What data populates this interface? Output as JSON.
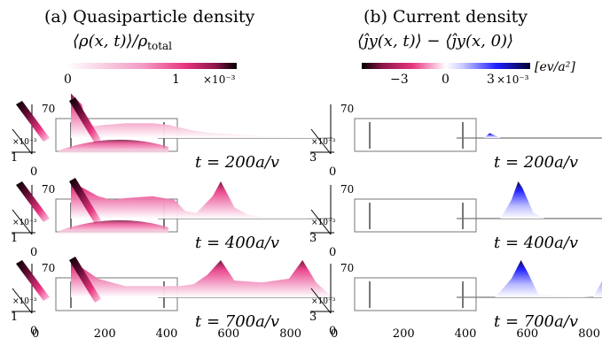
{
  "panel_a": {
    "title": "(a) Quasiparticle density",
    "formula": "⟨ρ(x, t)⟩/ρ",
    "formula_sub": "total",
    "colorbar_ticks": [
      "0",
      "1"
    ],
    "colorbar_exponent": "×10⁻³",
    "colorbar_colors": [
      "#ffffff",
      "#f06aa6",
      "#c8246b",
      "#000000"
    ]
  },
  "panel_b": {
    "title": "(b) Current density",
    "formula": "⟨ĵy(x, t)⟩ − ⟨ĵy(x, 0)⟩",
    "colorbar_ticks": [
      "−3",
      "0",
      "3"
    ],
    "colorbar_exponent": "×10⁻³",
    "colorbar_unit": "[ev/a²]",
    "colorbar_colors": [
      "#000000",
      "#8a1548",
      "#f3a3c8",
      "#ffffff",
      "#b8b8ff",
      "#1010ff",
      "#000050"
    ]
  },
  "time_labels": [
    "t = 200a/v",
    "t = 400a/v",
    "t = 700a/v"
  ],
  "axis": {
    "x_ticks": [
      "0",
      "200",
      "400",
      "600",
      "800"
    ],
    "y_tick_top": "70",
    "y_tick_bottom": "0",
    "z_exponent": "×10⁻³",
    "z_tick_a": "1",
    "z_tick_b": "3"
  },
  "chart_data": [
    {
      "type": "area",
      "title": "(a) Quasiparticle density",
      "xlabel": "",
      "ylabel": "",
      "xlim": [
        0,
        960
      ],
      "ylim": [
        0,
        70
      ],
      "series": [
        {
          "name": "t = 200a/v",
          "x": [
            0,
            40,
            60,
            120,
            200,
            300,
            360,
            390,
            420,
            450,
            500,
            600,
            700,
            800,
            960
          ],
          "values": [
            1.2,
            0.9,
            0.3,
            0.35,
            0.4,
            0.4,
            0.35,
            0.3,
            0.25,
            0.2,
            0.15,
            0.1,
            0.05,
            0.03,
            0.0
          ]
        },
        {
          "name": "t = 400a/v",
          "x": [
            0,
            100,
            150,
            200,
            300,
            380,
            420,
            460,
            520,
            550,
            600,
            650,
            700,
            800,
            960
          ],
          "values": [
            1.0,
            0.6,
            0.5,
            0.55,
            0.6,
            0.5,
            0.2,
            0.15,
            0.6,
            1.0,
            0.3,
            0.1,
            0.05,
            0.02,
            0.0
          ]
        },
        {
          "name": "t = 700a/v",
          "x": [
            0,
            100,
            200,
            300,
            400,
            450,
            500,
            550,
            600,
            700,
            800,
            850,
            900,
            960
          ],
          "values": [
            1.0,
            0.5,
            0.3,
            0.3,
            0.3,
            0.35,
            0.6,
            1.0,
            0.45,
            0.4,
            0.5,
            1.0,
            0.4,
            0.0
          ]
        }
      ]
    },
    {
      "type": "area",
      "title": "(b) Current density",
      "xlabel": "",
      "ylabel": "",
      "xlim": [
        0,
        960
      ],
      "ylim": [
        0,
        70
      ],
      "series": [
        {
          "name": "t = 200a/v",
          "x": [
            420,
            440,
            460,
            480
          ],
          "values": [
            0.0,
            0.4,
            0.2,
            0.0
          ]
        },
        {
          "name": "t = 400a/v",
          "x": [
            480,
            520,
            545,
            560,
            600,
            640
          ],
          "values": [
            0.0,
            1.5,
            3.0,
            2.5,
            0.5,
            0.0
          ]
        },
        {
          "name": "t = 700a/v",
          "x": [
            460,
            520,
            555,
            580,
            620,
            820,
            870,
            900,
            940
          ],
          "values": [
            0.0,
            1.5,
            3.0,
            2.0,
            0.2,
            0.0,
            2.0,
            3.0,
            0.0
          ]
        }
      ]
    }
  ]
}
